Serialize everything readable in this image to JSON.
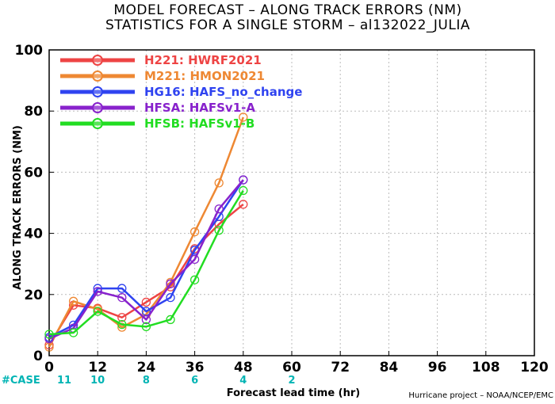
{
  "chart_data": {
    "type": "line",
    "title": "MODEL FORECAST – ALONG TRACK ERRORS (NM)",
    "subtitle": "STATISTICS FOR A SINGLE STORM – al132022_JULIA",
    "xlabel": "Forecast lead time (hr)",
    "ylabel": "ALONG TRACK ERRORS (NM)",
    "xlim": [
      0,
      120
    ],
    "ylim": [
      0,
      100
    ],
    "xticks": [
      0,
      12,
      24,
      36,
      48,
      60,
      72,
      84,
      96,
      108,
      120
    ],
    "yticks": [
      0,
      20,
      40,
      60,
      80,
      100
    ],
    "grid": true,
    "legend_position": "top-left",
    "x": [
      0,
      6,
      12,
      18,
      24,
      30,
      36,
      42,
      48
    ],
    "series": [
      {
        "name": "H221: HWRF2021",
        "color": "#ee4444",
        "values": [
          3.5,
          16.5,
          15.5,
          12.5,
          17.5,
          22.5,
          35,
          43,
          49.5
        ]
      },
      {
        "name": "M221: HMON2021",
        "color": "#ee8833",
        "values": [
          2.8,
          17.8,
          15.2,
          9.3,
          13.5,
          24,
          40.5,
          56.5,
          78
        ]
      },
      {
        "name": "HG16: HAFS_no_change",
        "color": "#2f43f0",
        "values": [
          6,
          10,
          22,
          22,
          14.5,
          19,
          34.5,
          45.5,
          57.5
        ]
      },
      {
        "name": "HFSA: HAFSv1-A",
        "color": "#8822cc",
        "values": [
          5.5,
          9,
          21,
          19,
          11.8,
          23.5,
          31.5,
          48,
          57.5
        ]
      },
      {
        "name": "HFSB: HAFSv1-B",
        "color": "#22dd22",
        "values": [
          7,
          7.5,
          14.5,
          10.2,
          9.5,
          11.8,
          24.8,
          41,
          54
        ]
      }
    ],
    "case_label": "#CASE",
    "case_counts": [
      {
        "x": 0,
        "count": "11"
      },
      {
        "x": 12,
        "count": "10"
      },
      {
        "x": 24,
        "count": "8"
      },
      {
        "x": 36,
        "count": "6"
      },
      {
        "x": 48,
        "count": "4"
      },
      {
        "x": 60,
        "count": "2"
      }
    ],
    "credit": "Hurricane project – NOAA/NCEP/EMC"
  }
}
